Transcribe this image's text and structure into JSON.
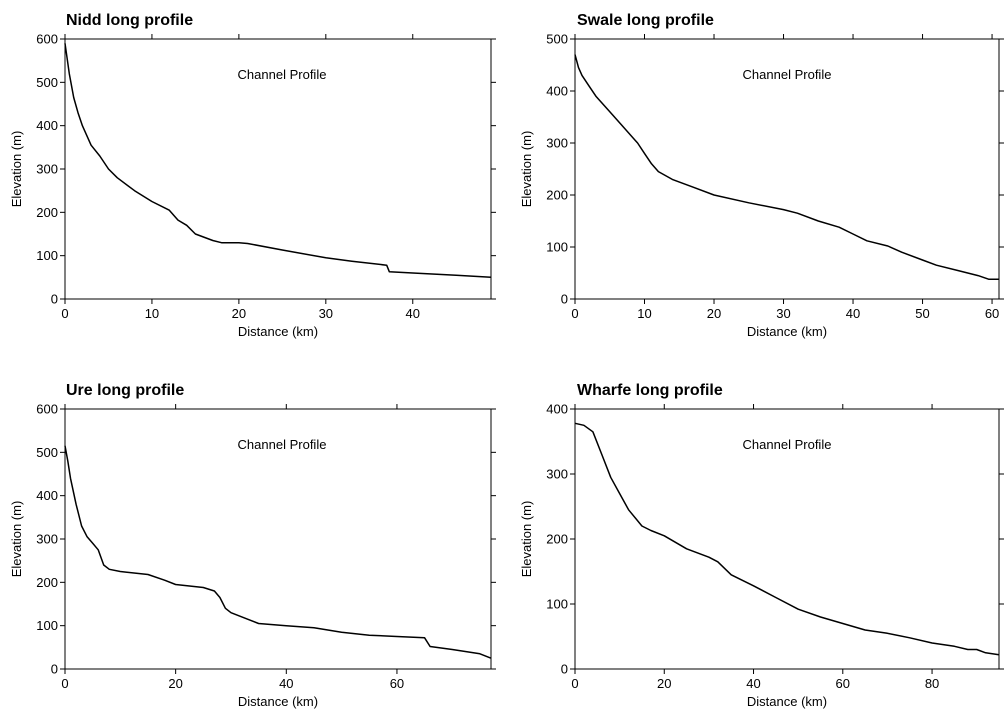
{
  "chart_data": [
    {
      "type": "line",
      "title": "Nidd long profile",
      "annotation": "Channel Profile",
      "xlabel": "Distance (km)",
      "ylabel": "Elevation (m)",
      "xlim": [
        0,
        49
      ],
      "ylim": [
        0,
        600
      ],
      "xticks": [
        0,
        10,
        20,
        30,
        40
      ],
      "yticks": [
        0,
        100,
        200,
        300,
        400,
        500,
        600
      ],
      "grid": false,
      "line_color": "#000000",
      "x": [
        0,
        0.5,
        1,
        1.5,
        2,
        3,
        4,
        5,
        6,
        8,
        10,
        12,
        13,
        14,
        15,
        17,
        18,
        20,
        21,
        25,
        30,
        33,
        37,
        37.3,
        40,
        45,
        49
      ],
      "y": [
        590,
        520,
        465,
        430,
        400,
        355,
        330,
        300,
        280,
        250,
        225,
        205,
        182,
        170,
        150,
        135,
        130,
        130,
        128,
        113,
        95,
        87,
        78,
        63,
        60,
        55,
        50
      ]
    },
    {
      "type": "line",
      "title": "Swale long profile",
      "annotation": "Channel Profile",
      "xlabel": "Distance (km)",
      "ylabel": "Elevation (m)",
      "xlim": [
        0,
        61
      ],
      "ylim": [
        0,
        500
      ],
      "xticks": [
        0,
        10,
        20,
        30,
        40,
        50,
        60
      ],
      "yticks": [
        0,
        100,
        200,
        300,
        400,
        500
      ],
      "grid": false,
      "line_color": "#000000",
      "x": [
        0,
        0.5,
        1,
        2,
        3,
        5,
        7,
        9,
        10,
        11,
        12,
        14,
        17,
        20,
        25,
        30,
        32,
        35,
        38,
        40,
        42,
        45,
        47,
        50,
        52,
        55,
        58,
        59.5,
        61
      ],
      "y": [
        470,
        445,
        430,
        410,
        390,
        360,
        330,
        300,
        280,
        260,
        245,
        230,
        215,
        200,
        185,
        172,
        165,
        150,
        138,
        125,
        112,
        102,
        90,
        75,
        65,
        55,
        45,
        38,
        38
      ]
    },
    {
      "type": "line",
      "title": "Ure long profile",
      "annotation": "Channel Profile",
      "xlabel": "Distance (km)",
      "ylabel": "Elevation (m)",
      "xlim": [
        0,
        77
      ],
      "ylim": [
        0,
        600
      ],
      "xticks": [
        0,
        20,
        40,
        60
      ],
      "yticks": [
        0,
        100,
        200,
        300,
        400,
        500,
        600
      ],
      "grid": false,
      "line_color": "#000000",
      "x": [
        0,
        0.5,
        1,
        2,
        3,
        4,
        5,
        6,
        7,
        8,
        10,
        15,
        18,
        20,
        25,
        27,
        28,
        29,
        30,
        33,
        35,
        40,
        45,
        50,
        55,
        60,
        65,
        66,
        70,
        75,
        77
      ],
      "y": [
        515,
        480,
        440,
        380,
        330,
        305,
        290,
        275,
        240,
        230,
        225,
        218,
        205,
        195,
        188,
        180,
        165,
        140,
        130,
        115,
        105,
        100,
        95,
        85,
        78,
        75,
        72,
        52,
        45,
        35,
        25
      ]
    },
    {
      "type": "line",
      "title": "Wharfe long profile",
      "annotation": "Channel Profile",
      "xlabel": "Distance (km)",
      "ylabel": "Elevation (m)",
      "xlim": [
        0,
        95
      ],
      "ylim": [
        0,
        400
      ],
      "xticks": [
        0,
        20,
        40,
        60,
        80
      ],
      "yticks": [
        0,
        100,
        200,
        300,
        400
      ],
      "grid": false,
      "line_color": "#000000",
      "x": [
        0,
        2,
        4,
        6,
        8,
        10,
        12,
        15,
        17,
        20,
        25,
        30,
        32,
        35,
        40,
        45,
        50,
        55,
        60,
        65,
        70,
        75,
        80,
        85,
        88,
        90,
        92,
        95
      ],
      "y": [
        378,
        375,
        365,
        330,
        295,
        270,
        245,
        220,
        213,
        205,
        185,
        172,
        165,
        145,
        128,
        110,
        92,
        80,
        70,
        60,
        55,
        48,
        40,
        35,
        30,
        30,
        25,
        22
      ]
    }
  ]
}
